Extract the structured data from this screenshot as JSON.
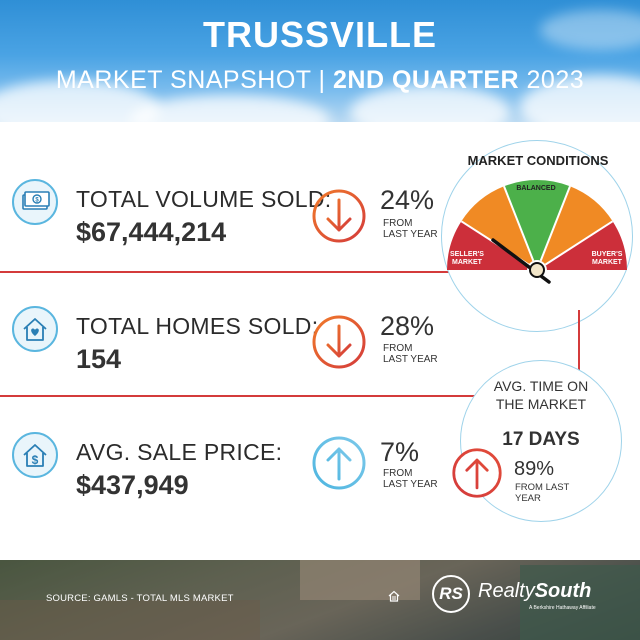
{
  "header": {
    "title": "TRUSSVILLE",
    "subtitle_prefix": "MARKET SNAPSHOT | ",
    "subtitle_bold": "2ND QUARTER",
    "subtitle_year": " 2023"
  },
  "metrics": [
    {
      "label": "TOTAL VOLUME SOLD:",
      "value": "$67,444,214",
      "change": "24%",
      "change_sub1": "FROM",
      "change_sub2": "LAST YEAR",
      "direction": "down",
      "icon": "cash-icon"
    },
    {
      "label": "TOTAL HOMES SOLD:",
      "value": "154",
      "change": "28%",
      "change_sub1": "FROM",
      "change_sub2": "LAST YEAR",
      "direction": "down",
      "icon": "house-heart-icon"
    },
    {
      "label": "AVG. SALE PRICE:",
      "value": "$437,949",
      "change": "7%",
      "change_sub1": "FROM",
      "change_sub2": "LAST YEAR",
      "direction": "up",
      "icon": "house-dollar-icon"
    }
  ],
  "market_conditions": {
    "title": "MARKET CONDITIONS",
    "sellers": "SELLER'S MARKET",
    "sellers_l1": "SELLER'S",
    "sellers_l2": "MARKET",
    "balanced": "BALANCED",
    "buyers_l1": "BUYER'S",
    "buyers_l2": "MARKET",
    "indicator": "seller's market"
  },
  "time_on_market": {
    "label_l1": "AVG. TIME ON",
    "label_l2": "THE MARKET",
    "value": "17 DAYS",
    "change": "89%",
    "change_sub1": "FROM LAST",
    "change_sub2": "YEAR",
    "direction": "up"
  },
  "footer": {
    "source": "SOURCE: GAMLS - TOTAL MLS MARKET",
    "logo_mark": "RS",
    "brand_a": "Realty",
    "brand_b": "South",
    "tagline": "A Berkshire Hathaway Affiliate"
  },
  "colors": {
    "accent_red": "#d43b3b",
    "accent_blue": "#5ab6df",
    "gauge_red": "#cc2f3a",
    "gauge_orange": "#f08a24",
    "gauge_green": "#4cb04a"
  }
}
